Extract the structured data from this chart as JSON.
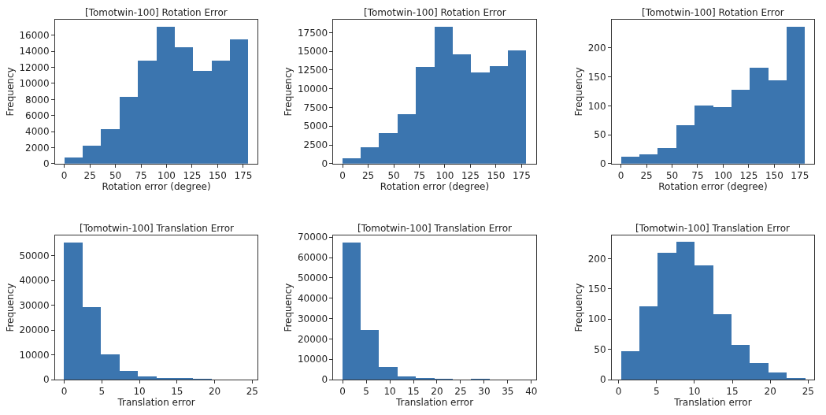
{
  "chart_data": [
    {
      "type": "histogram",
      "title": "[Tomotwin-100] Rotation Error",
      "xlabel": "Rotation error (degree)",
      "ylabel": "Frequency",
      "color": "#3b75af",
      "bins": [
        0,
        18,
        36,
        54,
        72,
        90,
        108,
        126,
        144,
        162,
        180
      ],
      "values": [
        800,
        2200,
        4300,
        8300,
        12800,
        17100,
        14500,
        11600,
        12800,
        15500
      ],
      "xlim": [
        -9,
        189
      ],
      "xticks": [
        0,
        25,
        50,
        75,
        100,
        125,
        150,
        175
      ],
      "ylim": [
        0,
        17955
      ],
      "yticks": [
        0,
        2000,
        4000,
        6000,
        8000,
        10000,
        12000,
        14000,
        16000
      ]
    },
    {
      "type": "histogram",
      "title": "[Tomotwin-100] Rotation Error",
      "xlabel": "Rotation error (degree)",
      "ylabel": "Frequency",
      "color": "#3b75af",
      "bins": [
        0,
        18,
        36,
        54,
        72,
        90,
        108,
        126,
        144,
        162,
        180
      ],
      "values": [
        700,
        2200,
        4100,
        6600,
        12900,
        18300,
        14600,
        12200,
        13000,
        15100
      ],
      "xlim": [
        -9,
        189
      ],
      "xticks": [
        0,
        25,
        50,
        75,
        100,
        125,
        150,
        175
      ],
      "ylim": [
        0,
        19215
      ],
      "yticks": [
        0,
        2500,
        5000,
        7500,
        10000,
        12500,
        15000,
        17500
      ]
    },
    {
      "type": "histogram",
      "title": "[Tomotwin-100] Rotation Error",
      "xlabel": "Rotation error (degree)",
      "ylabel": "Frequency",
      "color": "#3b75af",
      "bins": [
        0,
        18,
        36,
        54,
        72,
        90,
        108,
        126,
        144,
        162,
        180
      ],
      "values": [
        12,
        16,
        27,
        67,
        101,
        98,
        128,
        166,
        144,
        237
      ],
      "xlim": [
        -9,
        189
      ],
      "xticks": [
        0,
        25,
        50,
        75,
        100,
        125,
        150,
        175
      ],
      "ylim": [
        0,
        249
      ],
      "yticks": [
        0,
        50,
        100,
        150,
        200
      ]
    },
    {
      "type": "histogram",
      "title": "[Tomotwin-100] Translation Error",
      "xlabel": "Translation error",
      "ylabel": "Frequency",
      "color": "#3b75af",
      "bins": [
        0,
        2.45,
        4.9,
        7.35,
        9.8,
        12.25,
        14.7,
        17.15,
        19.6,
        22.05,
        24.5
      ],
      "values": [
        55300,
        29100,
        10100,
        3300,
        1200,
        600,
        300,
        200,
        0,
        0
      ],
      "xlim": [
        -1.2,
        25.7
      ],
      "xticks": [
        0,
        5,
        10,
        15,
        20,
        25
      ],
      "ylim": [
        0,
        58065
      ],
      "yticks": [
        0,
        10000,
        20000,
        30000,
        40000,
        50000
      ]
    },
    {
      "type": "histogram",
      "title": "[Tomotwin-100] Translation Error",
      "xlabel": "Translation error",
      "ylabel": "Frequency",
      "color": "#3b75af",
      "bins": [
        0,
        3.9,
        7.8,
        11.7,
        15.6,
        19.5,
        23.4,
        27.3,
        31.2,
        35.1,
        39
      ],
      "values": [
        67400,
        24200,
        6000,
        1600,
        400,
        200,
        0,
        200,
        0,
        0
      ],
      "xlim": [
        -1.95,
        40.95
      ],
      "xticks": [
        0,
        5,
        10,
        15,
        20,
        25,
        30,
        35,
        40
      ],
      "ylim": [
        0,
        70770
      ],
      "yticks": [
        0,
        10000,
        20000,
        30000,
        40000,
        50000,
        60000,
        70000
      ]
    },
    {
      "type": "histogram",
      "title": "[Tomotwin-100] Translation Error",
      "xlabel": "Translation error",
      "ylabel": "Frequency",
      "color": "#3b75af",
      "bins": [
        0.3,
        2.73,
        5.16,
        7.59,
        10.02,
        12.45,
        14.88,
        17.31,
        19.74,
        22.17,
        24.6
      ],
      "values": [
        46,
        121,
        209,
        227,
        189,
        108,
        57,
        27,
        12,
        3
      ],
      "xlim": [
        -0.9,
        25.8
      ],
      "xticks": [
        0,
        5,
        10,
        15,
        20,
        25
      ],
      "ylim": [
        0,
        238
      ],
      "yticks": [
        0,
        50,
        100,
        150,
        200
      ]
    }
  ]
}
